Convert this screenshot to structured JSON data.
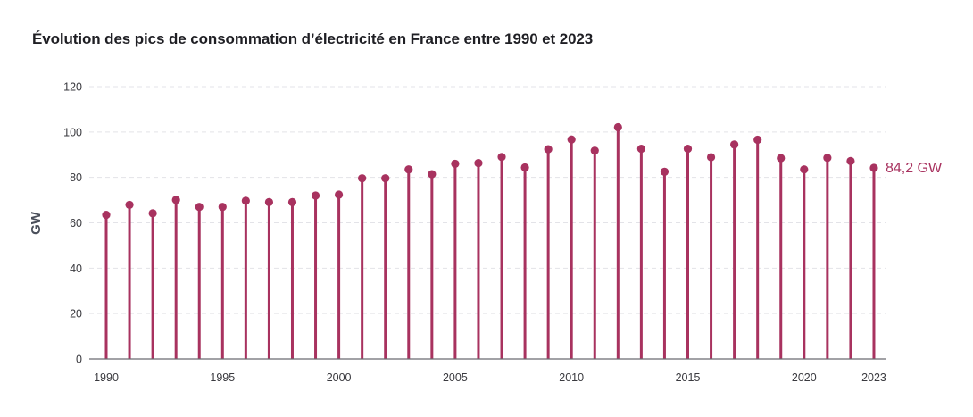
{
  "chart_data": {
    "type": "lollipop",
    "title": "Évolution des pics de consommation d’électricité en France entre 1990 et 2023",
    "xlabel": "",
    "ylabel": "GW",
    "x": [
      1990,
      1991,
      1992,
      1993,
      1994,
      1995,
      1996,
      1997,
      1998,
      1999,
      2000,
      2001,
      2002,
      2003,
      2004,
      2005,
      2006,
      2007,
      2008,
      2009,
      2010,
      2011,
      2012,
      2013,
      2014,
      2015,
      2016,
      2017,
      2018,
      2019,
      2020,
      2021,
      2022,
      2023
    ],
    "values": [
      63.5,
      67.9,
      64.2,
      70.1,
      67.0,
      67.0,
      69.7,
      69.1,
      69.1,
      72.0,
      72.4,
      79.6,
      79.6,
      83.5,
      81.4,
      86.0,
      86.3,
      89.0,
      84.4,
      92.4,
      96.7,
      91.8,
      102.1,
      92.6,
      82.5,
      92.6,
      88.9,
      94.5,
      96.6,
      88.5,
      83.5,
      88.6,
      87.2,
      84.2
    ],
    "x_ticks": [
      "1990",
      "1995",
      "2000",
      "2005",
      "2010",
      "2015",
      "2020",
      "2023"
    ],
    "y_ticks": [
      "0",
      "20",
      "40",
      "60",
      "80",
      "100",
      "120"
    ],
    "ylim": [
      0,
      120
    ],
    "grid": "horizontal dashed",
    "end_label": "84,2 GW",
    "colors": {
      "stem": "#a8325f",
      "grid": "#e3e3e8",
      "axis": "#6b6b70",
      "title": "#1f1f24"
    }
  }
}
